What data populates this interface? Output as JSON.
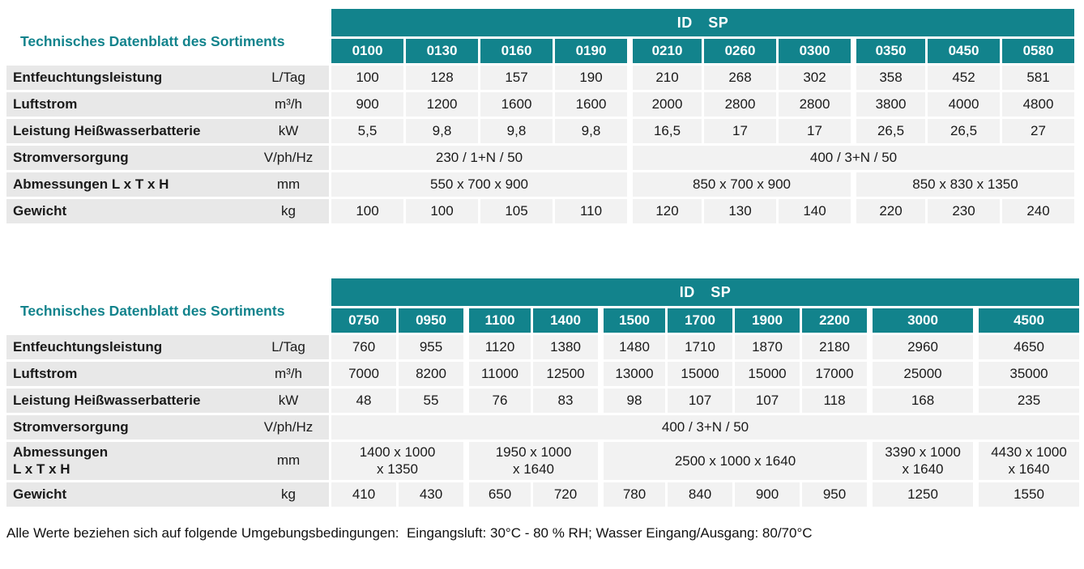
{
  "colors": {
    "teal": "#12838C",
    "row_label_bg": "#E8E8E8",
    "value_bg": "#F2F2F2"
  },
  "footer": "Alle Werte beziehen sich auf folgende Umgebungsbedingungen:  Eingangsluft: 30°C - 80 % RH; Wasser Eingang/Ausgang: 80/70°C",
  "tables": [
    {
      "caption": "Technisches Datenblatt des Sortiments",
      "series": "ID SP",
      "models": [
        "0100",
        "0130",
        "0160",
        "0190",
        "0210",
        "0260",
        "0300",
        "0350",
        "0450",
        "0580"
      ],
      "group_starts": [
        4,
        7
      ],
      "layout": {
        "label_col": 295,
        "unit_col": 100,
        "data_cols": [
          89,
          89,
          89,
          89,
          89,
          89,
          89,
          89,
          89,
          89
        ]
      },
      "rows": [
        {
          "label": "Entfeuchtungsleistung",
          "unit": "L/Tag",
          "cells": [
            {
              "t": "100"
            },
            {
              "t": "128"
            },
            {
              "t": "157"
            },
            {
              "t": "190"
            },
            {
              "t": "210"
            },
            {
              "t": "268"
            },
            {
              "t": "302"
            },
            {
              "t": "358"
            },
            {
              "t": "452"
            },
            {
              "t": "581"
            }
          ]
        },
        {
          "label": "Luftstrom",
          "unit": "m³/h",
          "cells": [
            {
              "t": "900"
            },
            {
              "t": "1200"
            },
            {
              "t": "1600"
            },
            {
              "t": "1600"
            },
            {
              "t": "2000"
            },
            {
              "t": "2800"
            },
            {
              "t": "2800"
            },
            {
              "t": "3800"
            },
            {
              "t": "4000"
            },
            {
              "t": "4800"
            }
          ]
        },
        {
          "label": "Leistung Heißwasserbatterie",
          "unit": "kW",
          "cells": [
            {
              "t": "5,5"
            },
            {
              "t": "9,8"
            },
            {
              "t": "9,8"
            },
            {
              "t": "9,8"
            },
            {
              "t": "16,5"
            },
            {
              "t": "17"
            },
            {
              "t": "17"
            },
            {
              "t": "26,5"
            },
            {
              "t": "26,5"
            },
            {
              "t": "27"
            }
          ]
        },
        {
          "label": "Stromversorgung",
          "unit": "V/ph/Hz",
          "cells": [
            {
              "t": "230 / 1+N / 50",
              "span": 4
            },
            {
              "t": "400 / 3+N / 50",
              "span": 6
            }
          ]
        },
        {
          "label": "Abmessungen L x T x H",
          "unit": "mm",
          "cells": [
            {
              "t": "550 x 700 x 900",
              "span": 4
            },
            {
              "t": "850 x 700 x 900",
              "span": 3
            },
            {
              "t": "850 x 830 x 1350",
              "span": 3
            }
          ]
        },
        {
          "label": "Gewicht",
          "unit": "kg",
          "cells": [
            {
              "t": "100"
            },
            {
              "t": "100"
            },
            {
              "t": "105"
            },
            {
              "t": "110"
            },
            {
              "t": "120"
            },
            {
              "t": "130"
            },
            {
              "t": "140"
            },
            {
              "t": "220"
            },
            {
              "t": "230"
            },
            {
              "t": "240"
            }
          ]
        }
      ]
    },
    {
      "caption": "Technisches Datenblatt des Sortiments",
      "series": "ID SP",
      "models": [
        "0750",
        "0950",
        "1100",
        "1400",
        "1500",
        "1700",
        "1900",
        "2200",
        "3000",
        "4500"
      ],
      "group_starts": [
        2,
        4,
        8,
        9
      ],
      "layout": {
        "label_col": 295,
        "unit_col": 100,
        "data_cols": [
          80,
          80,
          80,
          80,
          80,
          80,
          80,
          80,
          128,
          128
        ]
      },
      "rows": [
        {
          "label": "Entfeuchtungsleistung",
          "unit": "L/Tag",
          "cells": [
            {
              "t": "760"
            },
            {
              "t": "955"
            },
            {
              "t": "1120"
            },
            {
              "t": "1380"
            },
            {
              "t": "1480"
            },
            {
              "t": "1710"
            },
            {
              "t": "1870"
            },
            {
              "t": "2180"
            },
            {
              "t": "2960"
            },
            {
              "t": "4650"
            }
          ]
        },
        {
          "label": "Luftstrom",
          "unit": "m³/h",
          "cells": [
            {
              "t": "7000"
            },
            {
              "t": "8200"
            },
            {
              "t": "11000"
            },
            {
              "t": "12500"
            },
            {
              "t": "13000"
            },
            {
              "t": "15000"
            },
            {
              "t": "15000"
            },
            {
              "t": "17000"
            },
            {
              "t": "25000"
            },
            {
              "t": "35000"
            }
          ]
        },
        {
          "label": "Leistung Heißwasserbatterie",
          "unit": "kW",
          "cells": [
            {
              "t": "48"
            },
            {
              "t": "55"
            },
            {
              "t": "76"
            },
            {
              "t": "83"
            },
            {
              "t": "98"
            },
            {
              "t": "107"
            },
            {
              "t": "107"
            },
            {
              "t": "118"
            },
            {
              "t": "168"
            },
            {
              "t": "235"
            }
          ]
        },
        {
          "label": "Stromversorgung",
          "unit": "V/ph/Hz",
          "cells": [
            {
              "t": "400 / 3+N / 50",
              "span": 10
            }
          ]
        },
        {
          "label": "Abmessungen\nL x T x H",
          "unit": "mm",
          "cells": [
            {
              "t": "1400 x 1000\nx 1350",
              "span": 2
            },
            {
              "t": "1950 x 1000\nx 1640",
              "span": 2
            },
            {
              "t": "2500 x 1000 x 1640",
              "span": 4
            },
            {
              "t": "3390 x 1000\nx 1640",
              "span": 1
            },
            {
              "t": "4430 x 1000\nx 1640",
              "span": 1
            }
          ]
        },
        {
          "label": "Gewicht",
          "unit": "kg",
          "cells": [
            {
              "t": "410"
            },
            {
              "t": "430"
            },
            {
              "t": "650"
            },
            {
              "t": "720"
            },
            {
              "t": "780"
            },
            {
              "t": "840"
            },
            {
              "t": "900"
            },
            {
              "t": "950"
            },
            {
              "t": "1250"
            },
            {
              "t": "1550"
            }
          ]
        }
      ]
    }
  ]
}
